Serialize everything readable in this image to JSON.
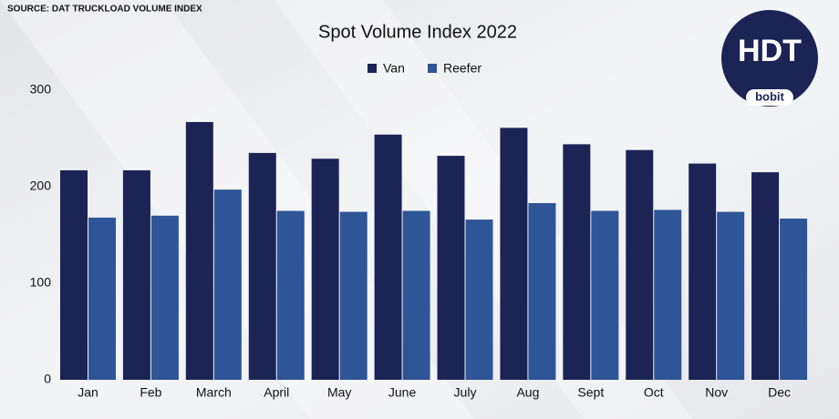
{
  "chart_data": {
    "type": "bar",
    "title": "Spot Volume Index 2022",
    "source": "SOURCE: DAT TRUCKLOAD VOLUME INDEX",
    "categories": [
      "Jan",
      "Feb",
      "March",
      "April",
      "May",
      "June",
      "July",
      "Aug",
      "Sept",
      "Oct",
      "Nov",
      "Dec"
    ],
    "series": [
      {
        "name": "Van",
        "color": "#1b2455",
        "values": [
          217,
          217,
          267,
          235,
          229,
          254,
          232,
          261,
          244,
          238,
          224,
          215
        ]
      },
      {
        "name": "Reefer",
        "color": "#2e5597",
        "values": [
          168,
          170,
          197,
          175,
          174,
          175,
          166,
          183,
          175,
          176,
          174,
          167
        ]
      }
    ],
    "ylim": [
      0,
      300
    ],
    "yticks": [
      0,
      100,
      200,
      300
    ],
    "grid": false,
    "legend": "top"
  },
  "logo": {
    "title": "HDT",
    "brand": "bobit"
  }
}
